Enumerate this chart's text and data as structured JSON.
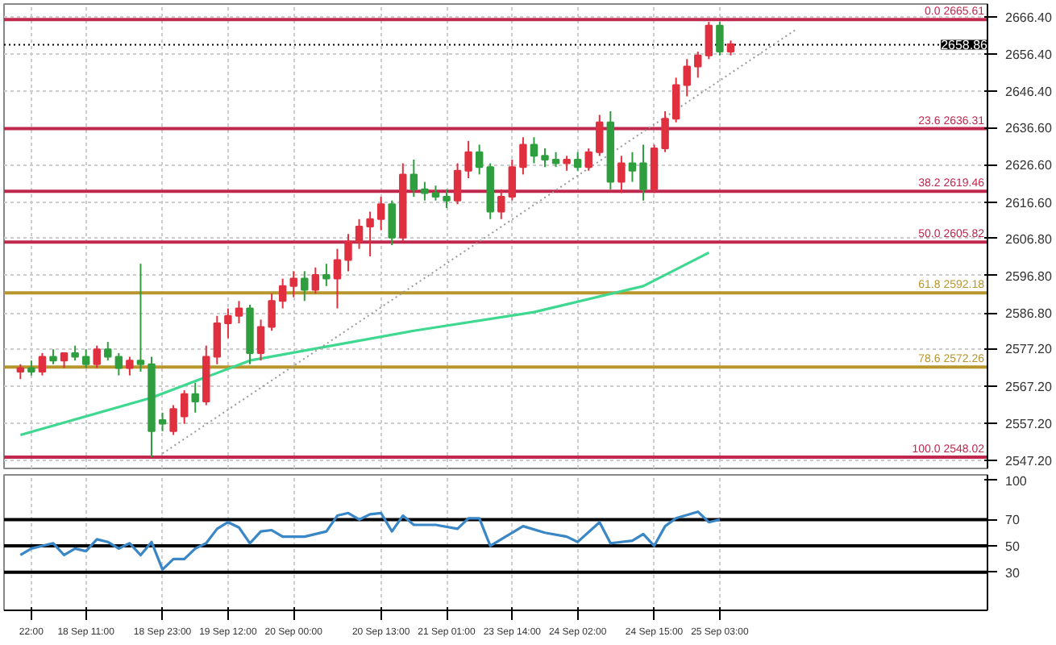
{
  "chart_data": [
    {
      "type": "candlestick",
      "tick_labels": "y",
      "grid": true,
      "ylim": [
        2545,
        2669.8
      ],
      "yticks": [
        {
          "value": 2547.2,
          "label": "2547.20"
        },
        {
          "value": 2557.2,
          "label": "2557.20"
        },
        {
          "value": 2567.2,
          "label": "2567.20"
        },
        {
          "value": 2577.2,
          "label": "2577.20"
        },
        {
          "value": 2586.8,
          "label": "2586.80"
        },
        {
          "value": 2596.8,
          "label": "2596.80"
        },
        {
          "value": 2606.8,
          "label": "2606.80"
        },
        {
          "value": 2616.6,
          "label": "2616.60"
        },
        {
          "value": 2626.6,
          "label": "2626.60"
        },
        {
          "value": 2636.6,
          "label": "2636.60"
        },
        {
          "value": 2646.4,
          "label": "2646.40"
        },
        {
          "value": 2656.4,
          "label": "2656.40"
        },
        {
          "value": 2666.4,
          "label": "2666.40"
        }
      ],
      "categories": [
        null,
        null,
        null,
        null,
        null,
        null,
        null,
        null,
        null,
        null,
        null,
        null,
        null,
        null,
        null,
        null,
        null,
        null,
        null,
        null,
        null,
        null,
        null,
        null,
        null,
        null,
        null,
        null,
        null,
        null,
        null,
        null,
        null,
        null,
        null,
        null,
        null,
        null,
        null,
        null,
        null,
        null,
        null,
        null,
        null,
        null,
        null,
        null,
        null,
        null,
        null,
        null,
        null,
        null,
        null,
        null,
        null,
        null,
        null,
        null,
        null,
        null,
        null,
        null,
        null,
        null,
        null,
        null,
        null,
        null,
        null,
        null,
        null,
        null,
        null,
        null,
        null,
        null,
        null,
        null,
        null,
        null,
        null,
        null,
        null,
        null,
        null,
        null,
        null,
        null
      ],
      "ohlc": [
        null,
        [
          2571,
          2573,
          2569,
          2572
        ],
        [
          2572,
          2574,
          2570,
          2571
        ],
        [
          2571,
          2576,
          2570,
          2575
        ],
        [
          2575,
          2577,
          2573,
          2574
        ],
        [
          2574,
          2576,
          2572,
          2576
        ],
        [
          2576,
          2578,
          2574,
          2575
        ],
        [
          2575,
          2577,
          2572,
          2573
        ],
        [
          2573,
          2578,
          2572,
          2577
        ],
        [
          2577,
          2579,
          2574,
          2575
        ],
        [
          2575,
          2576,
          2570,
          2572
        ],
        [
          2572,
          2575,
          2570,
          2574
        ],
        [
          2574,
          2600,
          2571,
          2573
        ],
        [
          2573,
          2575,
          2548,
          2555
        ],
        [
          2558,
          2560,
          2555,
          2557
        ],
        [
          2555,
          2562,
          2554,
          2561
        ],
        [
          2559,
          2566,
          2557,
          2565
        ],
        [
          2565,
          2568,
          2560,
          2563
        ],
        [
          2563,
          2578,
          2562,
          2575
        ],
        [
          2575,
          2586,
          2573,
          2584
        ],
        [
          2584,
          2588,
          2580,
          2586
        ],
        [
          2586,
          2590,
          2584,
          2588
        ],
        [
          2588,
          2589,
          2573,
          2576
        ],
        [
          2576,
          2585,
          2574,
          2583
        ],
        [
          2583,
          2592,
          2582,
          2590
        ],
        [
          2590,
          2596,
          2588,
          2594
        ],
        [
          2594,
          2598,
          2591,
          2596
        ],
        [
          2596,
          2598,
          2590,
          2593
        ],
        [
          2593,
          2599,
          2592,
          2597
        ],
        [
          2597,
          2600,
          2594,
          2596
        ],
        [
          2596,
          2604,
          2588,
          2601
        ],
        [
          2601,
          2608,
          2598,
          2606
        ],
        [
          2606,
          2612,
          2604,
          2610
        ],
        [
          2610,
          2614,
          2602,
          2612
        ],
        [
          2612,
          2618,
          2609,
          2616
        ],
        [
          2616,
          2617,
          2605,
          2607
        ],
        [
          2607,
          2627,
          2606,
          2624
        ],
        [
          2624,
          2628,
          2618,
          2620
        ],
        [
          2620,
          2622,
          2617,
          2619
        ],
        [
          2619,
          2621,
          2617,
          2618
        ],
        [
          2618,
          2620,
          2615,
          2617
        ],
        [
          2617,
          2627,
          2616,
          2625
        ],
        [
          2625,
          2633,
          2623,
          2630
        ],
        [
          2630,
          2632,
          2624,
          2626
        ],
        [
          2626,
          2627,
          2612,
          2614
        ],
        [
          2614,
          2620,
          2612,
          2618
        ],
        [
          2618,
          2628,
          2617,
          2626
        ],
        [
          2626,
          2634,
          2624,
          2632
        ],
        [
          2632,
          2634,
          2627,
          2629
        ],
        [
          2629,
          2631,
          2626,
          2628
        ],
        [
          2628,
          2630,
          2626,
          2627
        ],
        [
          2627,
          2629,
          2625,
          2628
        ],
        [
          2628,
          2630,
          2625,
          2626
        ],
        [
          2626,
          2631,
          2625,
          2630
        ],
        [
          2630,
          2640,
          2629,
          2638
        ],
        [
          2638,
          2641,
          2620,
          2622
        ],
        [
          2622,
          2629,
          2619,
          2627
        ],
        [
          2627,
          2630,
          2622,
          2625
        ],
        [
          2627,
          2632,
          2617,
          2620
        ],
        [
          2620,
          2632,
          2619,
          2631
        ],
        [
          2631,
          2641,
          2630,
          2639
        ],
        [
          2639,
          2650,
          2638,
          2648
        ],
        [
          2648,
          2655,
          2645,
          2653
        ],
        [
          2653,
          2657,
          2650,
          2656
        ],
        [
          2656,
          2665,
          2655,
          2664
        ],
        [
          2664,
          2665,
          2656,
          2657
        ],
        [
          2657,
          2660,
          2656,
          2659
        ],
        null,
        null,
        null,
        null,
        null,
        null,
        null,
        null,
        null,
        null,
        null,
        null,
        null,
        null,
        null,
        null,
        null,
        null,
        null,
        null,
        null,
        null,
        null
      ],
      "colors": [
        null,
        "#e03040",
        "#2e9e3e",
        "#e03040",
        "#2e9e3e",
        "#e03040",
        "#2e9e3e",
        "#2e9e3e",
        "#e03040",
        "#2e9e3e",
        "#2e9e3e",
        "#e03040",
        "#2e9e3e",
        "#2e9e3e",
        "#2e9e3e",
        "#e03040",
        "#e03040",
        "#2e9e3e",
        "#e03040",
        "#e03040",
        "#e03040",
        "#e03040",
        "#2e9e3e",
        "#e03040",
        "#e03040",
        "#e03040",
        "#e03040",
        "#2e9e3e",
        "#e03040",
        "#2e9e3e",
        "#e03040",
        "#e03040",
        "#e03040",
        "#e03040",
        "#e03040",
        "#2e9e3e",
        "#e03040",
        "#2e9e3e",
        "#2e9e3e",
        "#2e9e3e",
        "#2e9e3e",
        "#e03040",
        "#e03040",
        "#2e9e3e",
        "#2e9e3e",
        "#e03040",
        "#e03040",
        "#e03040",
        "#2e9e3e",
        "#2e9e3e",
        "#2e9e3e",
        "#e03040",
        "#2e9e3e",
        "#e03040",
        "#e03040",
        "#2e9e3e",
        "#e03040",
        "#2e9e3e",
        "#2e9e3e",
        "#e03040",
        "#e03040",
        "#e03040",
        "#e03040",
        "#e03040",
        "#e03040",
        "#2e9e3e",
        "#e03040",
        null,
        null,
        null,
        null,
        null,
        null,
        null,
        null,
        null,
        null,
        null,
        null,
        null,
        null,
        null,
        null,
        null,
        null,
        null,
        null,
        null,
        null,
        null
      ],
      "series": [
        {
          "type": "line",
          "color": "#3ed890",
          "values": [
            null,
            2554,
            null,
            null,
            null,
            null,
            null,
            null,
            null,
            null,
            null,
            null,
            null,
            2564,
            null,
            null,
            null,
            null,
            null,
            null,
            null,
            null,
            2574,
            null,
            null,
            null,
            null,
            null,
            null,
            null,
            null,
            null,
            null,
            null,
            null,
            null,
            null,
            2582,
            null,
            null,
            null,
            null,
            null,
            null,
            null,
            null,
            null,
            null,
            2587,
            null,
            null,
            null,
            null,
            null,
            null,
            null,
            null,
            null,
            2594,
            null,
            null,
            null,
            null,
            null,
            2603,
            null,
            null,
            null,
            null,
            null,
            null,
            null,
            null,
            null,
            null,
            null,
            null,
            null,
            null,
            null,
            null,
            null,
            null,
            null,
            null,
            null,
            null,
            null,
            null,
            null
          ]
        },
        {
          "type": "line",
          "color": "#999999",
          "line_style": "dotted",
          "values": [
            null,
            null,
            null,
            null,
            null,
            null,
            null,
            null,
            null,
            null,
            null,
            null,
            null,
            null,
            2549,
            null,
            null,
            null,
            null,
            null,
            null,
            null,
            null,
            null,
            null,
            null,
            null,
            null,
            null,
            null,
            null,
            null,
            null,
            null,
            null,
            null,
            null,
            null,
            null,
            null,
            null,
            null,
            null,
            null,
            null,
            null,
            null,
            null,
            null,
            null,
            null,
            null,
            null,
            null,
            null,
            null,
            null,
            null,
            null,
            null,
            null,
            null,
            null,
            null,
            null,
            null,
            null,
            null,
            null,
            null,
            null,
            null,
            2663,
            null,
            null,
            null,
            null,
            null,
            null,
            null,
            null,
            null,
            null,
            null,
            null,
            null,
            null,
            null,
            null,
            null
          ]
        }
      ],
      "ref_lines": [
        {
          "axis": "y",
          "value": 2665.61,
          "label": "0.0 2665.61",
          "color": "#c0284e"
        },
        {
          "axis": "y",
          "value": 2636.31,
          "label": "23.6 2636.31",
          "color": "#c0284e"
        },
        {
          "axis": "y",
          "value": 2619.46,
          "label": "38.2 2619.46",
          "color": "#c0284e"
        },
        {
          "axis": "y",
          "value": 2605.82,
          "label": "50.0 2605.82",
          "color": "#c0284e"
        },
        {
          "axis": "y",
          "value": 2592.18,
          "label": "61.8 2592.18",
          "color": "#b8962e"
        },
        {
          "axis": "y",
          "value": 2572.26,
          "label": "78.6 2572.26",
          "color": "#b8962e"
        },
        {
          "axis": "y",
          "value": 2548.02,
          "label": "100.0 2548.02",
          "color": "#c0284e"
        },
        {
          "axis": "y",
          "value": 2658.86,
          "label": "2658.86",
          "color": "#000000",
          "line_style": "dotted"
        }
      ]
    },
    {
      "type": "line",
      "grid": "x",
      "ylim": [
        1,
        104
      ],
      "yticks": [
        30,
        50,
        70,
        100
      ],
      "categories": [
        null,
        null,
        "22:00",
        null,
        null,
        null,
        null,
        "18 Sep 11:00",
        null,
        null,
        null,
        null,
        null,
        null,
        "18 Sep 23:00",
        null,
        null,
        null,
        null,
        null,
        "19 Sep 12:00",
        null,
        null,
        null,
        null,
        null,
        "20 Sep 00:00",
        null,
        null,
        null,
        null,
        null,
        null,
        null,
        "20 Sep 13:00",
        null,
        null,
        null,
        null,
        null,
        "21 Sep 01:00",
        null,
        null,
        null,
        null,
        null,
        "23 Sep 14:00",
        null,
        null,
        null,
        null,
        null,
        "24 Sep 02:00",
        null,
        null,
        null,
        null,
        null,
        null,
        "24 Sep 15:00",
        null,
        null,
        null,
        null,
        null,
        "25 Sep 03:00",
        null,
        null,
        null,
        null,
        null,
        null,
        null,
        null,
        null,
        null,
        null,
        null,
        null,
        null,
        null,
        null,
        null,
        null,
        null,
        null,
        null,
        null,
        null,
        null
      ],
      "series": [
        {
          "color": "#3a87c8",
          "values": [
            null,
            43,
            48,
            null,
            52,
            43,
            48,
            46,
            55,
            53,
            48,
            52,
            43,
            53,
            32,
            40,
            40,
            48,
            52,
            63,
            68,
            64,
            52,
            61,
            62,
            57,
            null,
            57,
            null,
            61,
            73,
            75,
            70,
            74,
            75,
            61,
            73,
            66,
            null,
            66,
            null,
            63,
            71,
            71,
            50,
            55,
            null,
            65,
            null,
            60,
            null,
            57,
            53,
            null,
            68,
            52,
            null,
            54,
            59,
            50,
            65,
            71,
            null,
            76,
            68,
            70,
            null,
            null,
            null,
            null,
            null,
            null,
            null,
            null,
            null,
            null,
            null,
            null,
            null,
            null,
            null,
            null,
            null,
            null,
            null,
            null,
            null,
            null,
            null,
            null
          ]
        }
      ],
      "ref_lines": [
        {
          "axis": "y",
          "value": 70,
          "color": "#000000"
        },
        {
          "axis": "y",
          "value": 50,
          "color": "#000000"
        },
        {
          "axis": "y",
          "value": 30,
          "color": "#000000"
        }
      ]
    }
  ]
}
